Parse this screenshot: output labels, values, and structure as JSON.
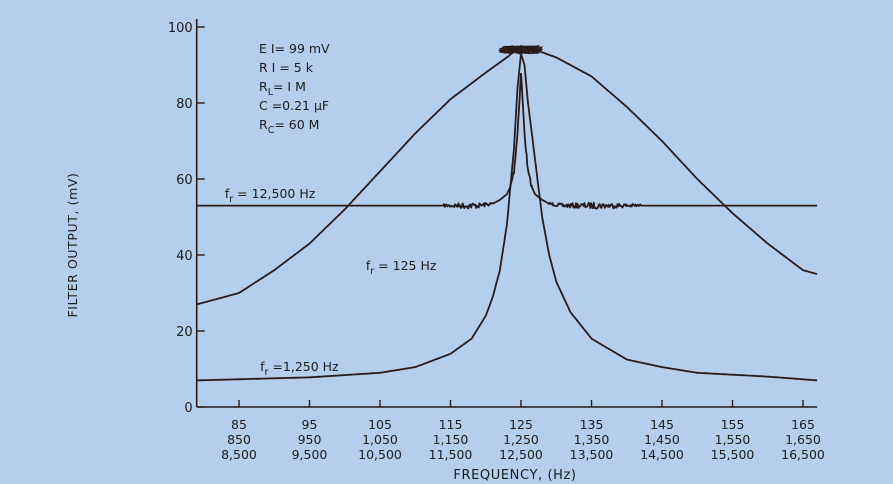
{
  "chart_data": {
    "type": "line",
    "background_color": "#b4cfee",
    "line_color": "#2a1a1a",
    "ylabel": "FILTER OUTPUT, (mV)",
    "xlabel": "FREQUENCY, (Hz)",
    "ylim": [
      0,
      100
    ],
    "yticks": [
      0,
      20,
      40,
      60,
      80,
      100
    ],
    "xlim": [
      79,
      167
    ],
    "x_ticks": [
      {
        "x": 85,
        "labels": [
          "85",
          "850",
          "8,500"
        ]
      },
      {
        "x": 95,
        "labels": [
          "95",
          "950",
          "9,500"
        ]
      },
      {
        "x": 105,
        "labels": [
          "105",
          "1,050",
          "10,500"
        ]
      },
      {
        "x": 115,
        "labels": [
          "115",
          "1,150",
          "11,500"
        ]
      },
      {
        "x": 125,
        "labels": [
          "125",
          "1,250",
          "12,500"
        ]
      },
      {
        "x": 135,
        "labels": [
          "135",
          "1,350",
          "13,500"
        ]
      },
      {
        "x": 145,
        "labels": [
          "145",
          "1,450",
          "14,500"
        ]
      },
      {
        "x": 155,
        "labels": [
          "155",
          "1,550",
          "15,500"
        ]
      },
      {
        "x": 165,
        "labels": [
          "165",
          "1,650",
          "16,500"
        ]
      }
    ],
    "parameters": [
      "E I = 99 mV",
      "R I = 5 k",
      "RL = I M",
      "C = 0.21 μF",
      "RC = 60 M"
    ],
    "parameter_parts": [
      {
        "main": "E I= 99 mV",
        "sub": "",
        "tail": ""
      },
      {
        "main": "R I = 5 k",
        "sub": "",
        "tail": ""
      },
      {
        "main": "R",
        "sub": "L",
        "tail": "= I M"
      },
      {
        "main": "C =0.21 μF",
        "sub": "",
        "tail": ""
      },
      {
        "main": "R",
        "sub": "C",
        "tail": "= 60 M"
      }
    ],
    "series": [
      {
        "name": "fr = 125 Hz",
        "label_parts": {
          "main": "f",
          "sub": "r",
          "tail": " = 125 Hz"
        },
        "label_anchor": [
          103,
          36
        ],
        "x": [
          79,
          85,
          90,
          95,
          100,
          105,
          110,
          115,
          120,
          123,
          125,
          127,
          130,
          135,
          140,
          145,
          150,
          155,
          160,
          165,
          167
        ],
        "y": [
          27,
          30,
          36,
          43,
          52,
          62,
          72,
          81,
          88,
          92,
          95,
          94,
          92,
          87,
          79,
          70,
          60,
          51,
          43,
          36,
          35
        ]
      },
      {
        "name": "fr = 1,250 Hz",
        "label_parts": {
          "main": "f",
          "sub": "r",
          "tail": " =1,250 Hz"
        },
        "label_anchor": [
          88,
          9.5
        ],
        "x": [
          79,
          85,
          95,
          105,
          110,
          115,
          118,
          120,
          121,
          122,
          123,
          124,
          124.5,
          125,
          125.5,
          126,
          127,
          128,
          129,
          130,
          132,
          135,
          140,
          145,
          150,
          155,
          160,
          167
        ],
        "y": [
          7,
          7.3,
          7.8,
          9,
          10.5,
          14,
          18,
          24,
          29,
          36,
          48,
          68,
          84,
          93,
          90,
          80,
          65,
          50,
          40,
          33,
          25,
          18,
          12.5,
          10.5,
          9,
          8.5,
          8,
          7
        ]
      },
      {
        "name": "fr = 12,500 Hz",
        "label_parts": {
          "main": "f",
          "sub": "r",
          "tail": " = 12,500 Hz"
        },
        "label_anchor": [
          83,
          55
        ],
        "x": [
          79,
          113,
          119,
          121,
          122,
          123,
          123.5,
          124,
          124.5,
          125,
          125.5,
          126,
          126.5,
          127,
          128,
          129,
          131,
          143,
          167
        ],
        "y": [
          53,
          53,
          53,
          53.5,
          54.5,
          56,
          58,
          62,
          72,
          88,
          72,
          62,
          58,
          56,
          54.5,
          53.5,
          53,
          53,
          53
        ],
        "noise_bands": [
          [
            114,
            121
          ],
          [
            129,
            142
          ]
        ],
        "peak_noise_band": [
          123.5,
          126.5
        ]
      }
    ]
  }
}
